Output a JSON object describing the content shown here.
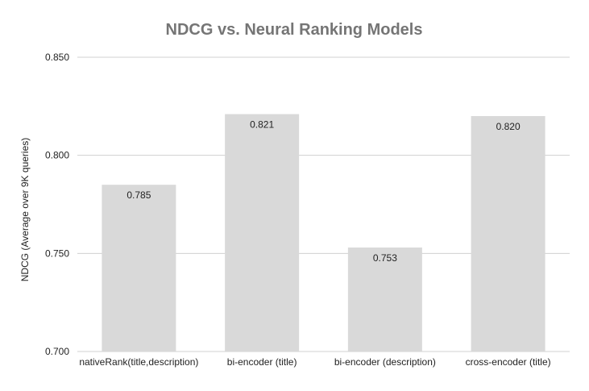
{
  "colors": {
    "bar": "#d9d9d9",
    "gridline": "#d0d0d0",
    "title": "#757575",
    "text": "#222222"
  },
  "chart_data": {
    "type": "bar",
    "title": "NDCG vs. Neural Ranking Models",
    "xlabel": "",
    "ylabel": "NDCG (Average over 9K queries)",
    "categories": [
      "nativeRank(title,description)",
      "bi-encoder (title)",
      "bi-encoder (description)",
      "cross-encoder (title)"
    ],
    "values": [
      0.785,
      0.821,
      0.753,
      0.82
    ],
    "data_labels": [
      "0.785",
      "0.821",
      "0.753",
      "0.820"
    ],
    "ylim": [
      0.7,
      0.85
    ],
    "yticks": [
      0.7,
      0.75,
      0.8,
      0.85
    ],
    "ytick_labels": [
      "0.700",
      "0.750",
      "0.800",
      "0.850"
    ],
    "grid": true,
    "legend": "none"
  }
}
